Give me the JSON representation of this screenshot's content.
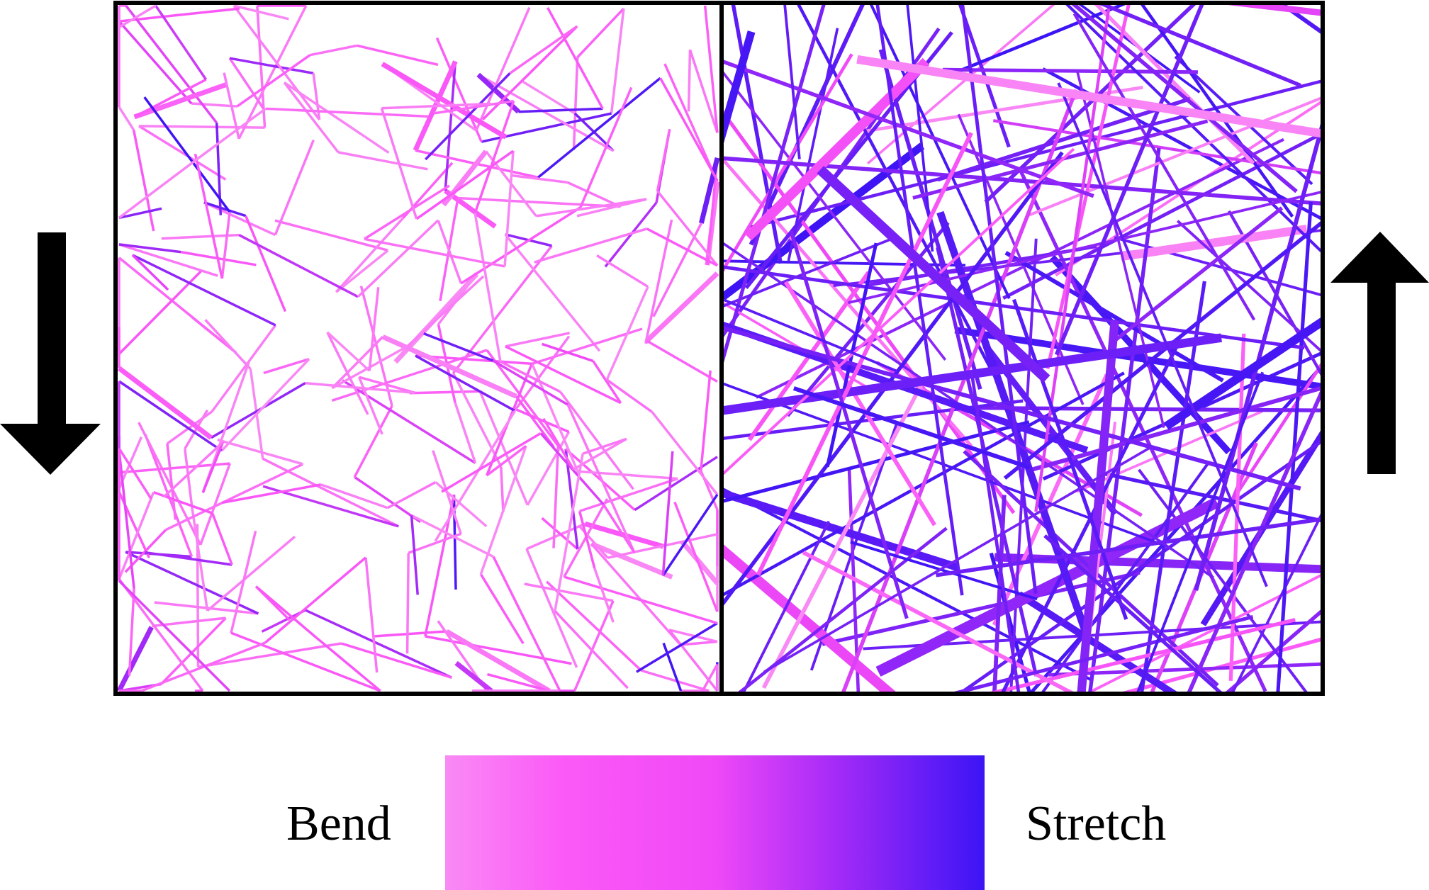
{
  "legend": {
    "left_label": "Bend",
    "right_label": "Stretch",
    "colors": [
      "#f98af5",
      "#fb59f7",
      "#ef49f7",
      "#a62bf7",
      "#3c14f5"
    ]
  },
  "panels": [
    {
      "name": "compressed-network",
      "arrow": "down-arrow",
      "dominant_mode": "bend"
    },
    {
      "name": "stretched-network",
      "arrow": "up-arrow",
      "dominant_mode": "stretch"
    }
  ],
  "colors": {
    "frame": "#000000",
    "bend": "#f98af5",
    "stretch": "#3c14f5"
  }
}
